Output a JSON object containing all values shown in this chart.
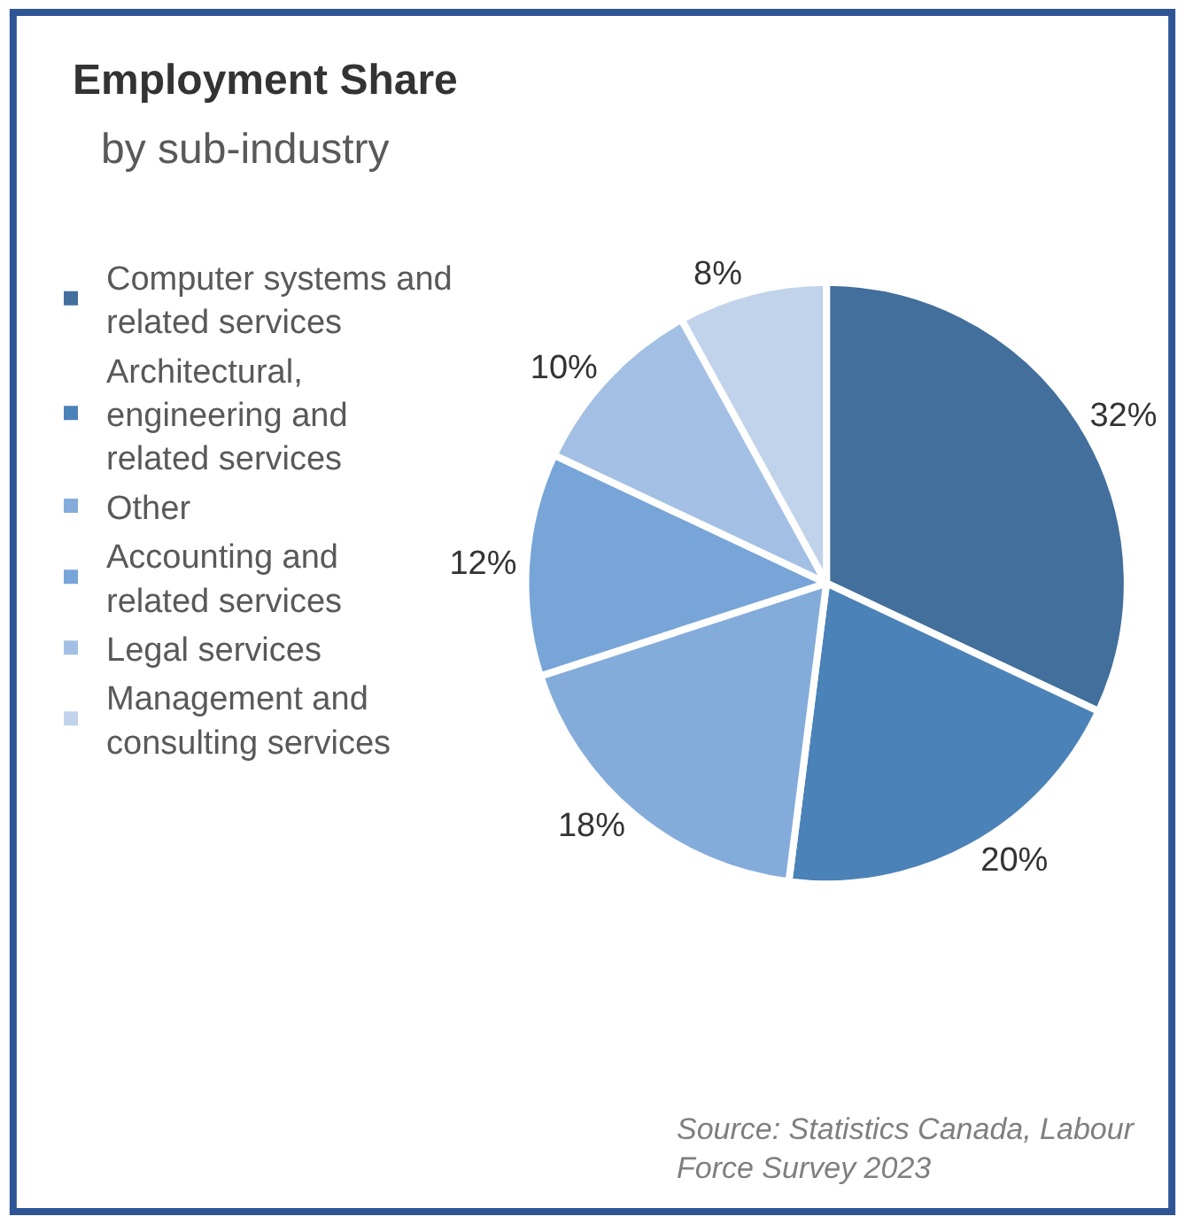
{
  "chart_data": {
    "type": "pie",
    "title": "Employment Share",
    "subtitle": "by sub-industry",
    "categories": [
      "Computer systems and related services",
      "Architectural, engineering and related services",
      "Other",
      "Accounting and related services",
      "Legal services",
      "Management and consulting services"
    ],
    "values": [
      32,
      20,
      18,
      12,
      10,
      8
    ],
    "value_labels": [
      "32%",
      "20%",
      "18%",
      "12%",
      "10%",
      "8%"
    ],
    "colors": [
      "#426f9c",
      "#4b82b7",
      "#84acdb",
      "#78a5d8",
      "#a3c0e4",
      "#c0d3ea"
    ],
    "legend": "left",
    "annotations": [
      "Source: Statistics Canada, Labour Force Survey 2023"
    ]
  }
}
